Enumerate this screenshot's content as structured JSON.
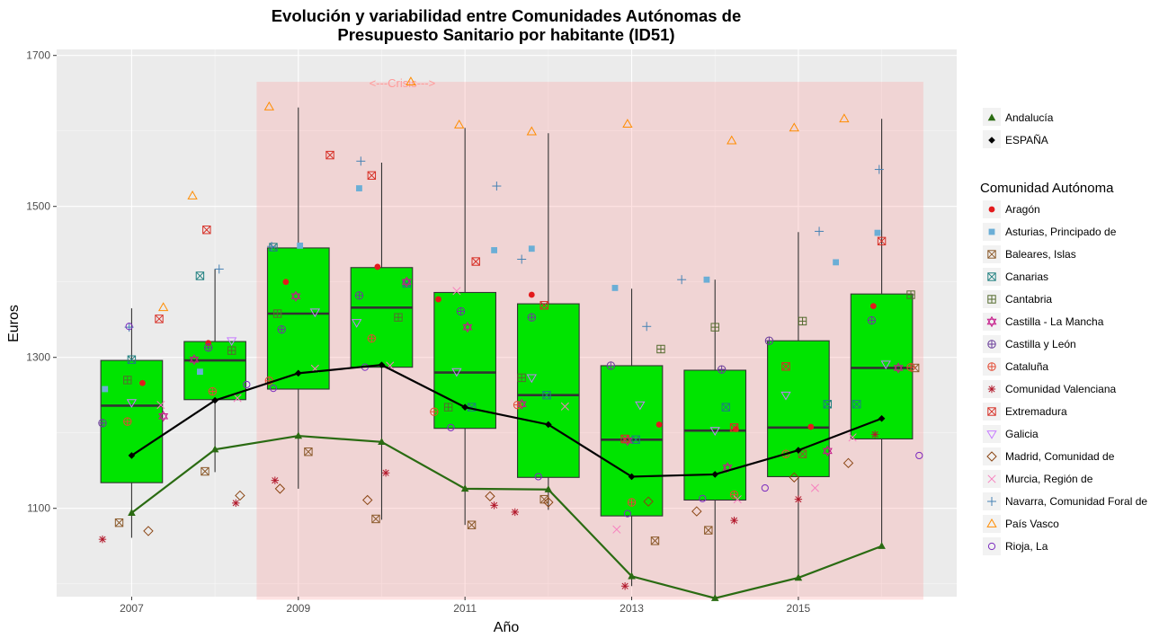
{
  "chart_data": {
    "type": "box",
    "title_lines": [
      "Evolución y variabilidad entre Comunidades Autónomas de",
      "Presupuesto Sanitario por habitante (ID51)"
    ],
    "xlabel": "Año",
    "ylabel": "Euros",
    "xlim": [
      2006.1,
      2016.9
    ],
    "ylim": [
      983,
      1708
    ],
    "x_ticks": [
      2007,
      2009,
      2011,
      2013,
      2015
    ],
    "y_ticks": [
      1100,
      1300,
      1500,
      1700
    ],
    "grid": true,
    "crisis": {
      "x0": 2008.5,
      "x1": 2016.5,
      "y0": 979,
      "y1": 1665,
      "label": "<---Crisis--->",
      "label_x": 2009.85,
      "label_y": 1664,
      "color": "#ff9999"
    },
    "box_fill": "#00e400",
    "boxes": [
      {
        "year": 2007,
        "q1": 1134,
        "median": 1236,
        "q3": 1296,
        "wlo": 1061,
        "whi": 1365
      },
      {
        "year": 2008,
        "q1": 1244,
        "median": 1296,
        "q3": 1321,
        "wlo": 1148,
        "whi": 1417
      },
      {
        "year": 2009,
        "q1": 1258,
        "median": 1358,
        "q3": 1445,
        "wlo": 1126,
        "whi": 1631
      },
      {
        "year": 2010,
        "q1": 1287,
        "median": 1366,
        "q3": 1419,
        "wlo": 1085,
        "whi": 1558
      },
      {
        "year": 2011,
        "q1": 1206,
        "median": 1280,
        "q3": 1386,
        "wlo": 1078,
        "whi": 1604
      },
      {
        "year": 2012,
        "q1": 1141,
        "median": 1250,
        "q3": 1371,
        "wlo": 1098,
        "whi": 1597
      },
      {
        "year": 2013,
        "q1": 1090,
        "median": 1191,
        "q3": 1289,
        "wlo": 997,
        "whi": 1391
      },
      {
        "year": 2014,
        "q1": 1111,
        "median": 1203,
        "q3": 1283,
        "wlo": 980,
        "whi": 1403
      },
      {
        "year": 2015,
        "q1": 1142,
        "median": 1207,
        "q3": 1322,
        "wlo": 1008,
        "whi": 1466
      },
      {
        "year": 2016,
        "q1": 1192,
        "median": 1286,
        "q3": 1384,
        "wlo": 1048,
        "whi": 1616
      }
    ],
    "series_lines": [
      {
        "name": "Andalucía",
        "color": "#2a6b12",
        "marker": "triangle",
        "x": [
          2007,
          2008,
          2009,
          2010,
          2011,
          2012,
          2013,
          2014,
          2015,
          2016
        ],
        "y": [
          1094,
          1178,
          1196,
          1188,
          1126,
          1125,
          1010,
          981,
          1008,
          1050
        ]
      },
      {
        "name": "ESPAÑA",
        "color": "#000000",
        "marker": "diamond",
        "x": [
          2007,
          2008,
          2009,
          2010,
          2011,
          2012,
          2013,
          2014,
          2015,
          2016
        ],
        "y": [
          1170,
          1243,
          1279,
          1290,
          1234,
          1211,
          1142,
          1145,
          1177,
          1219
        ]
      }
    ],
    "series_points": [
      {
        "name": "Aragón",
        "color": "#e31a1c",
        "marker": "dot",
        "x": [
          2007.13,
          2007.92,
          2008.85,
          2009.95,
          2010.68,
          2011.8,
          2013.33,
          2014.25,
          2015.15,
          2015.9
        ],
        "y": [
          1266,
          1319,
          1400,
          1420,
          1377,
          1383,
          1211,
          1205,
          1208,
          1368
        ]
      },
      {
        "name": "Asturias, Principado de",
        "color": "#6baed6",
        "marker": "square",
        "x": [
          2006.68,
          2007.82,
          2009.02,
          2009.73,
          2011.35,
          2011.8,
          2012.8,
          2013.9,
          2015.45,
          2015.95
        ],
        "y": [
          1258,
          1281,
          1448,
          1524,
          1442,
          1444,
          1392,
          1403,
          1426,
          1465
        ]
      },
      {
        "name": "Baleares, Islas",
        "color": "#8b5a2b",
        "marker": "boxx",
        "x": [
          2006.85,
          2007.88,
          2009.12,
          2009.93,
          2011.08,
          2011.95,
          2013.28,
          2013.92,
          2015.05,
          2016.4
        ],
        "y": [
          1081,
          1149,
          1175,
          1086,
          1078,
          1112,
          1057,
          1071,
          1172,
          1286
        ]
      },
      {
        "name": "Canarias",
        "color": "#1f7f7f",
        "marker": "boxx",
        "x": [
          2007.0,
          2007.82,
          2008.7,
          2010.3,
          2011.08,
          2011.98,
          2013.05,
          2014.13,
          2015.35,
          2015.7
        ],
        "y": [
          1297,
          1408,
          1446,
          1398,
          1234,
          1250,
          1191,
          1234,
          1238,
          1238
        ]
      },
      {
        "name": "Cantabria",
        "color": "#556b2f",
        "marker": "boxplus",
        "x": [
          2006.95,
          2008.2,
          2008.75,
          2010.2,
          2010.8,
          2011.68,
          2013.35,
          2014.0,
          2015.05,
          2016.35
        ],
        "y": [
          1270,
          1309,
          1358,
          1353,
          1234,
          1273,
          1311,
          1340,
          1348,
          1383
        ]
      },
      {
        "name": "Castilla - La Mancha",
        "color": "#c51b8a",
        "marker": "star6",
        "x": [
          2007.38,
          2007.75,
          2008.97,
          2010.3,
          2011.03,
          2011.68,
          2012.95,
          2014.15,
          2015.35,
          2016.2
        ],
        "y": [
          1222,
          1297,
          1381,
          1400,
          1340,
          1238,
          1190,
          1154,
          1176,
          1286
        ]
      },
      {
        "name": "Castilla y León",
        "color": "#6a3d9a",
        "marker": "circleplus",
        "x": [
          2006.65,
          2007.92,
          2008.8,
          2009.73,
          2010.95,
          2011.8,
          2012.75,
          2014.08,
          2014.65,
          2015.88
        ],
        "y": [
          1213,
          1313,
          1337,
          1382,
          1361,
          1353,
          1289,
          1284,
          1322,
          1349
        ]
      },
      {
        "name": "Cataluña",
        "color": "#e34a33",
        "marker": "circleplus",
        "x": [
          2006.95,
          2007.97,
          2008.65,
          2009.88,
          2010.63,
          2011.63,
          2013.0,
          2014.23,
          2014.85,
          2016.35
        ],
        "y": [
          1215,
          1255,
          1269,
          1325,
          1228,
          1237,
          1108,
          1118,
          1172,
          1287
        ]
      },
      {
        "name": "Comunidad Valenciana",
        "color": "#b2182b",
        "marker": "asterisk",
        "x": [
          2006.65,
          2008.25,
          2008.72,
          2010.05,
          2011.35,
          2011.6,
          2012.92,
          2014.23,
          2015.0,
          2015.92
        ],
        "y": [
          1059,
          1107,
          1137,
          1147,
          1104,
          1095,
          997,
          1084,
          1112,
          1198
        ]
      },
      {
        "name": "Extremadura",
        "color": "#d73027",
        "marker": "boxx",
        "x": [
          2007.33,
          2007.9,
          2009.38,
          2009.88,
          2011.13,
          2011.95,
          2012.92,
          2014.23,
          2014.85,
          2016.0
        ],
        "y": [
          1351,
          1469,
          1568,
          1541,
          1427,
          1369,
          1192,
          1207,
          1288,
          1454
        ]
      },
      {
        "name": "Galicia",
        "color": "#c77cff",
        "marker": "triangledown",
        "x": [
          2007.0,
          2008.2,
          2009.2,
          2009.7,
          2010.9,
          2011.8,
          2013.1,
          2014.0,
          2014.85,
          2016.05
        ],
        "y": [
          1240,
          1322,
          1360,
          1346,
          1281,
          1273,
          1237,
          1203,
          1250,
          1291
        ]
      },
      {
        "name": "Madrid, Comunidad de",
        "color": "#8b4513",
        "marker": "diamondo",
        "x": [
          2007.2,
          2008.3,
          2008.78,
          2009.83,
          2011.3,
          2012.0,
          2013.2,
          2013.78,
          2014.95,
          2015.6
        ],
        "y": [
          1070,
          1117,
          1126,
          1111,
          1116,
          1108,
          1109,
          1096,
          1141,
          1160
        ]
      },
      {
        "name": "Murcia, Región de",
        "color": "#f781bf",
        "marker": "cross",
        "x": [
          2007.35,
          2008.27,
          2009.2,
          2010.1,
          2010.9,
          2012.2,
          2012.82,
          2014.27,
          2015.2,
          2015.65
        ],
        "y": [
          1237,
          1246,
          1285,
          1289,
          1388,
          1235,
          1072,
          1112,
          1127,
          1194
        ]
      },
      {
        "name": "Navarra, Comunidad Foral de",
        "color": "#4682b4",
        "marker": "plus",
        "x": [
          2006.97,
          2008.05,
          2008.68,
          2009.75,
          2011.38,
          2011.68,
          2013.18,
          2013.6,
          2015.25,
          2015.97
        ],
        "y": [
          1340,
          1417,
          1447,
          1560,
          1527,
          1430,
          1341,
          1403,
          1467,
          1549
        ]
      },
      {
        "name": "País Vasco",
        "color": "#ff8c00",
        "marker": "triangleo",
        "x": [
          2007.38,
          2007.73,
          2008.65,
          2010.35,
          2010.93,
          2011.8,
          2012.95,
          2014.2,
          2014.95,
          2015.55
        ],
        "y": [
          1366,
          1514,
          1632,
          1665,
          1608,
          1599,
          1609,
          1587,
          1604,
          1616
        ]
      },
      {
        "name": "Rioja, La",
        "color": "#7b2cbf",
        "marker": "circleo",
        "x": [
          2006.97,
          2008.38,
          2008.7,
          2009.8,
          2010.83,
          2011.88,
          2012.95,
          2013.85,
          2014.6,
          2016.45
        ],
        "y": [
          1341,
          1264,
          1259,
          1287,
          1207,
          1142,
          1093,
          1113,
          1127,
          1170
        ]
      }
    ],
    "legend_top": [
      {
        "label": "Andalucía",
        "color": "#2a6b12",
        "marker": "triangle"
      },
      {
        "label": "ESPAÑA",
        "color": "#000000",
        "marker": "diamond"
      }
    ],
    "legend_title": "Comunidad Autónoma",
    "legend_ca": [
      {
        "label": "Aragón",
        "color": "#e31a1c",
        "marker": "dot"
      },
      {
        "label": "Asturias, Principado de",
        "color": "#6baed6",
        "marker": "square"
      },
      {
        "label": "Baleares, Islas",
        "color": "#8b5a2b",
        "marker": "boxx"
      },
      {
        "label": "Canarias",
        "color": "#1f7f7f",
        "marker": "boxx"
      },
      {
        "label": "Cantabria",
        "color": "#556b2f",
        "marker": "boxplus"
      },
      {
        "label": "Castilla - La Mancha",
        "color": "#c51b8a",
        "marker": "star6"
      },
      {
        "label": "Castilla y León",
        "color": "#6a3d9a",
        "marker": "circleplus"
      },
      {
        "label": "Cataluña",
        "color": "#e34a33",
        "marker": "circleplus"
      },
      {
        "label": "Comunidad Valenciana",
        "color": "#b2182b",
        "marker": "asterisk"
      },
      {
        "label": "Extremadura",
        "color": "#d73027",
        "marker": "boxx"
      },
      {
        "label": "Galicia",
        "color": "#c77cff",
        "marker": "triangledown"
      },
      {
        "label": "Madrid, Comunidad de",
        "color": "#8b4513",
        "marker": "diamondo"
      },
      {
        "label": "Murcia, Región de",
        "color": "#f781bf",
        "marker": "cross"
      },
      {
        "label": "Navarra, Comunidad Foral de",
        "color": "#4682b4",
        "marker": "plus"
      },
      {
        "label": "País Vasco",
        "color": "#ff8c00",
        "marker": "triangleo"
      },
      {
        "label": "Rioja, La",
        "color": "#7b2cbf",
        "marker": "circleo"
      }
    ]
  }
}
